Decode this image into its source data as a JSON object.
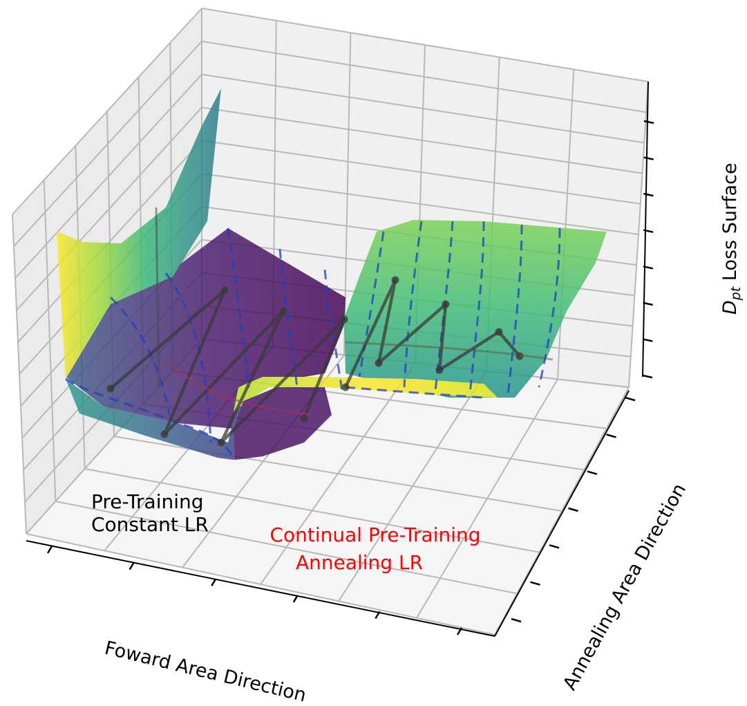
{
  "chart_data": {
    "type": "surface",
    "title": "",
    "xlabel": "Foward Area Direction",
    "ylabel": "Annealing Area Direction",
    "zlabel_main": "D",
    "zlabel_sub": "pt",
    "zlabel_rest": " Loss Surface",
    "tick_labels_shown": false,
    "grid": true,
    "colormap": "viridis",
    "colors": {
      "viridis": [
        "#440154",
        "#3b528b",
        "#21918c",
        "#5ec962",
        "#fde725"
      ],
      "trajectory": "#3a3a3a",
      "dashed_contour": "#1f3fbf",
      "annealing_text": "#ff0000",
      "pretraining_text": "#000000",
      "pane_back": "#ebebeb",
      "pane_side": "#f2f2f2",
      "pane_floor": "#f5f5f5",
      "grid": "#b0b0b0"
    },
    "annotations": [
      {
        "key": "pretraining",
        "lines": [
          "Pre-Training",
          "Constant LR"
        ]
      },
      {
        "key": "annealing",
        "lines": [
          "Continual Pre-Training",
          "Annealing LR"
        ]
      }
    ],
    "trajectories": [
      {
        "name": "",
        "stage": "pre-training",
        "points": [
          [
            160,
            562
          ],
          [
            325,
            420
          ],
          [
            238,
            628
          ],
          [
            410,
            450
          ],
          [
            320,
            640
          ],
          [
            498,
            462
          ],
          [
            440,
            605
          ]
        ]
      },
      {
        "name": "",
        "stage": "continual",
        "points": [
          [
            500,
            560
          ],
          [
            572,
            405
          ],
          [
            548,
            525
          ],
          [
            645,
            440
          ],
          [
            636,
            535
          ],
          [
            722,
            480
          ],
          [
            752,
            515
          ]
        ]
      }
    ]
  }
}
